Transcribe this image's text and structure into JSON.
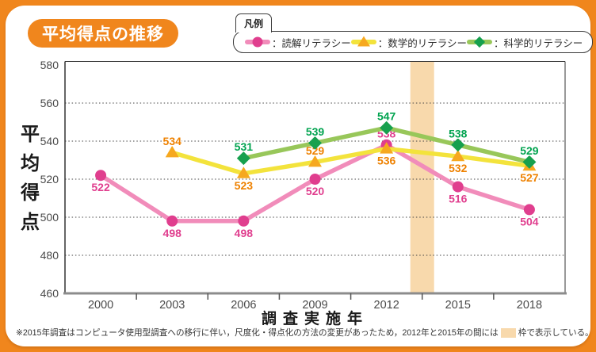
{
  "title": "平均得点の推移",
  "legend": {
    "tab_label": "凡例",
    "items": [
      {
        "label": "：読解リテラシー",
        "series_key": "reading"
      },
      {
        "label": "：数学的リテラシー",
        "series_key": "math"
      },
      {
        "label": "：科学的リテラシー",
        "series_key": "science"
      }
    ]
  },
  "chart_data": {
    "type": "line",
    "categories": [
      "2000",
      "2003",
      "2006",
      "2009",
      "2012",
      "2015",
      "2018"
    ],
    "series": [
      {
        "name": "読解リテラシー",
        "key": "reading",
        "marker": "circle",
        "line_color": "#f18cba",
        "marker_color": "#e03e8e",
        "label_color": "#e03e8e",
        "values": [
          522,
          498,
          498,
          520,
          538,
          516,
          504
        ],
        "label_pos": [
          "below",
          "below",
          "below",
          "below",
          "above",
          "below",
          "below"
        ]
      },
      {
        "name": "数学的リテラシー",
        "key": "math",
        "marker": "triangle",
        "line_color": "#f3e33c",
        "marker_color": "#f6a81f",
        "label_color": "#ee8100",
        "values": [
          null,
          534,
          523,
          529,
          536,
          532,
          527
        ],
        "label_pos": [
          null,
          "above",
          "below",
          "above",
          "below",
          "below",
          "below"
        ]
      },
      {
        "name": "科学的リテラシー",
        "key": "science",
        "marker": "diamond",
        "line_color": "#98c75a",
        "marker_color": "#16a04e",
        "label_color": "#00a34f",
        "values": [
          null,
          null,
          531,
          539,
          547,
          538,
          529
        ],
        "label_pos": [
          null,
          null,
          "above",
          "above",
          "above",
          "above",
          "above"
        ]
      }
    ],
    "xlabel": "調査実施年",
    "ylabel": "平均得点",
    "ylim": [
      460,
      580
    ],
    "yticks": [
      460,
      480,
      500,
      520,
      540,
      560,
      580
    ],
    "ygrid": [
      480,
      500,
      520,
      540,
      560
    ],
    "grid": "dotted-horizontal",
    "legend_position": "top-right",
    "band": {
      "between": [
        "2012",
        "2015"
      ],
      "color": "#f8d9ac"
    }
  },
  "footnote": {
    "text_before": "※2015年調査はコンピュータ使用型調査への移行に伴い，尺度化・得点化の方法の変更があったため，2012年と2015年の間には",
    "text_after": "枠で表示している。",
    "swatch_color": "#f8d9ac"
  },
  "colors": {
    "frame_orange": "#f0861d",
    "band_peach": "#f8d9ac",
    "axis_text": "#4a4a4a",
    "plot_border": "#333333"
  }
}
